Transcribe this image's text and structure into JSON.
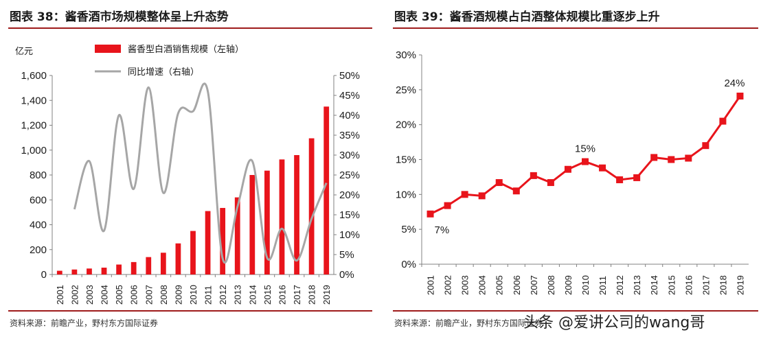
{
  "left": {
    "title": "图表 38：酱香酒市场规模整体呈上升态势",
    "source": "资料来源：前瞻产业，野村东方国际证券",
    "chart_data": {
      "type": "bar",
      "categories": [
        "2001",
        "2002",
        "2003",
        "2004",
        "2005",
        "2006",
        "2007",
        "2008",
        "2009",
        "2010",
        "2011",
        "2012",
        "2013",
        "2014",
        "2015",
        "2016",
        "2017",
        "2018",
        "2019"
      ],
      "series": [
        {
          "name": "酱香型白酒销售规模（左轴）",
          "type": "bar",
          "axis": "left",
          "color": "#e8141b",
          "values": [
            30,
            40,
            48,
            55,
            80,
            100,
            140,
            175,
            250,
            350,
            510,
            535,
            620,
            800,
            835,
            925,
            960,
            1095,
            1350
          ]
        },
        {
          "name": "同比增速（右轴）",
          "type": "line",
          "axis": "right",
          "color": "#a6a6a6",
          "values": [
            null,
            16.4,
            28.5,
            11,
            40,
            21.5,
            47,
            20.5,
            40.5,
            41,
            46,
            4,
            17,
            28.5,
            4.2,
            11.5,
            3.5,
            14,
            23
          ]
        }
      ],
      "left_axis": {
        "unit_label": "亿元",
        "ylim": [
          0,
          1600
        ],
        "ticks": [
          "0",
          "200",
          "400",
          "600",
          "800",
          "1,000",
          "1,200",
          "1,400",
          "1,600"
        ]
      },
      "right_axis": {
        "ylim": [
          0,
          50
        ],
        "ticks": [
          "0%",
          "5%",
          "10%",
          "15%",
          "20%",
          "25%",
          "30%",
          "35%",
          "40%",
          "45%",
          "50%"
        ]
      },
      "legend_position": "top-center",
      "grid": false
    }
  },
  "right": {
    "title": "图表 39：酱香酒规模占白酒整体规模比重逐步上升",
    "source": "资料来源：前瞻产业，野村东方国际证券",
    "chart_data": {
      "type": "line",
      "categories": [
        "2001",
        "2002",
        "2003",
        "2004",
        "2005",
        "2006",
        "2007",
        "2008",
        "2009",
        "2010",
        "2011",
        "2012",
        "2013",
        "2014",
        "2015",
        "2016",
        "2017",
        "2018",
        "2019"
      ],
      "series": [
        {
          "color": "#e8141b",
          "marker": "square",
          "values": [
            7.2,
            8.4,
            10.0,
            9.8,
            11.7,
            10.5,
            12.7,
            11.7,
            13.6,
            14.7,
            13.8,
            12.1,
            12.4,
            15.3,
            15.0,
            15.2,
            17.0,
            20.5,
            24.1
          ]
        }
      ],
      "ylim": [
        0,
        30
      ],
      "ticks": [
        "0%",
        "5%",
        "10%",
        "15%",
        "20%",
        "25%",
        "30%"
      ],
      "annotations": [
        {
          "category": "2001",
          "text": "7%"
        },
        {
          "category": "2010",
          "text": "15%"
        },
        {
          "category": "2019",
          "text": "24%"
        }
      ],
      "grid": false
    }
  },
  "watermark": "头条 @爱讲公司的wang哥"
}
